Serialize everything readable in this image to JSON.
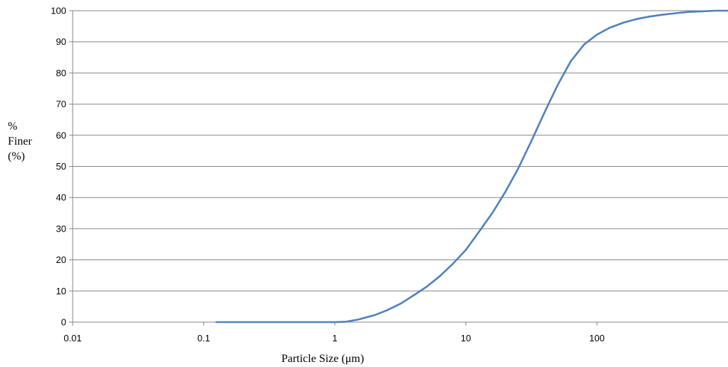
{
  "chart_data": {
    "type": "line",
    "xscale": "log",
    "xlim": [
      0.01,
      1000
    ],
    "ylim": [
      0,
      100
    ],
    "grid": "horizontal",
    "legend": "none",
    "xlabel": "Particle Size (μm)",
    "ylabel_lines": [
      "%",
      "Finer",
      "(%)"
    ],
    "xticks": [
      {
        "value": 0.01,
        "label": "0.01"
      },
      {
        "value": 0.1,
        "label": "0.1"
      },
      {
        "value": 1,
        "label": "1"
      },
      {
        "value": 10,
        "label": "10"
      },
      {
        "value": 100,
        "label": "100"
      }
    ],
    "yticks": [
      {
        "value": 0,
        "label": "0"
      },
      {
        "value": 10,
        "label": "10"
      },
      {
        "value": 20,
        "label": "20"
      },
      {
        "value": 30,
        "label": "30"
      },
      {
        "value": 40,
        "label": "40"
      },
      {
        "value": 50,
        "label": "50"
      },
      {
        "value": 60,
        "label": "60"
      },
      {
        "value": 70,
        "label": "70"
      },
      {
        "value": 80,
        "label": "80"
      },
      {
        "value": 90,
        "label": "90"
      },
      {
        "value": 100,
        "label": "100"
      }
    ],
    "series": [
      {
        "color": "#4f81bd",
        "x": [
          0.125,
          0.2,
          0.4,
          0.7,
          1.0,
          1.2,
          1.5,
          2,
          2.5,
          3.2,
          4,
          5,
          6.3,
          8,
          10,
          12.5,
          16,
          20,
          25,
          32,
          40,
          50,
          63,
          80,
          100,
          125,
          160,
          200,
          250,
          315,
          400,
          500,
          630,
          800,
          1000
        ],
        "y": [
          0,
          0,
          0,
          0,
          0,
          0.1,
          0.8,
          2.2,
          3.8,
          6.0,
          8.6,
          11.3,
          14.7,
          18.8,
          23.2,
          28.8,
          35.2,
          41.8,
          49.2,
          58.6,
          67.5,
          76.0,
          83.7,
          89.2,
          92.3,
          94.5,
          96.2,
          97.3,
          98.1,
          98.7,
          99.2,
          99.6,
          99.8,
          100,
          100
        ]
      }
    ]
  }
}
